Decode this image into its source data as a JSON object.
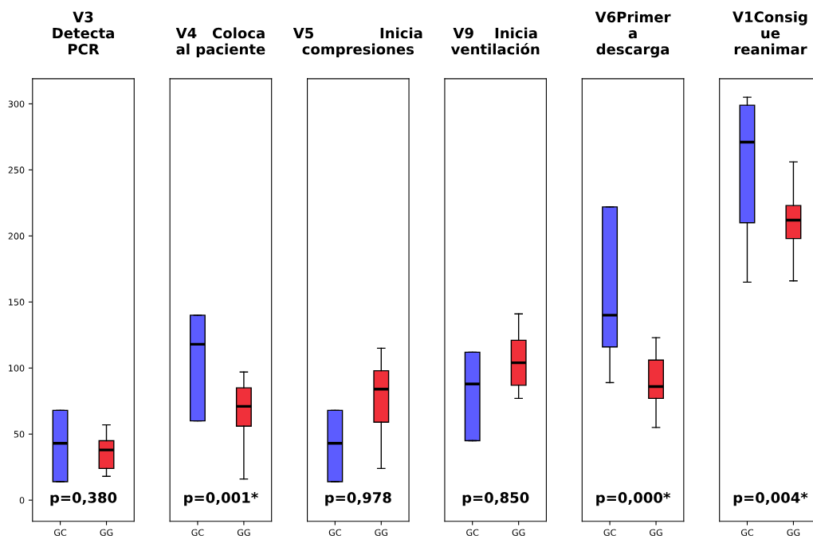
{
  "chart_data": [
    {
      "type": "box",
      "title": "V3\nDetecta\nPCR",
      "categories": [
        "GC",
        "GG"
      ],
      "colors": [
        "#5c5cff",
        "#f0303a"
      ],
      "ylim": [
        -16,
        319
      ],
      "yticks": [
        0,
        50,
        100,
        150,
        200,
        250,
        300
      ],
      "annotations": [
        "p=0,380"
      ],
      "boxes": [
        {
          "low": 14,
          "q1": 14,
          "median": 43,
          "q3": 68,
          "high": 68
        },
        {
          "low": 18,
          "q1": 24,
          "median": 38,
          "q3": 45,
          "high": 57
        }
      ]
    },
    {
      "type": "box",
      "title": "V4   Coloca\nal paciente",
      "categories": [
        "GC",
        "GG"
      ],
      "colors": [
        "#5c5cff",
        "#f0303a"
      ],
      "ylim": [
        -16,
        319
      ],
      "tick_labels": "x",
      "annotations": [
        "p=0,001*"
      ],
      "boxes": [
        {
          "low": 60,
          "q1": 60,
          "median": 118,
          "q3": 140,
          "high": 140
        },
        {
          "low": 16,
          "q1": 56,
          "median": 71,
          "q3": 85,
          "high": 97
        }
      ]
    },
    {
      "type": "box",
      "title": "V5             Inicia\ncompresiones",
      "categories": [
        "GC",
        "GG"
      ],
      "colors": [
        "#5c5cff",
        "#f0303a"
      ],
      "ylim": [
        -16,
        319
      ],
      "tick_labels": "x",
      "annotations": [
        "p=0,978"
      ],
      "boxes": [
        {
          "low": 14,
          "q1": 14,
          "median": 43,
          "q3": 68,
          "high": 68
        },
        {
          "low": 24,
          "q1": 59,
          "median": 84,
          "q3": 98,
          "high": 115
        }
      ]
    },
    {
      "type": "box",
      "title": "V9    Inicia\nventilación",
      "categories": [
        "GC",
        "GG"
      ],
      "colors": [
        "#5c5cff",
        "#f0303a"
      ],
      "ylim": [
        -16,
        319
      ],
      "tick_labels": "x",
      "annotations": [
        "p=0,850"
      ],
      "boxes": [
        {
          "low": 45,
          "q1": 45,
          "median": 88,
          "q3": 112,
          "high": 112
        },
        {
          "low": 77,
          "q1": 87,
          "median": 104,
          "q3": 121,
          "high": 141
        }
      ]
    },
    {
      "type": "box",
      "title": "V6Primer\na\ndescarga",
      "categories": [
        "GC",
        "GG"
      ],
      "colors": [
        "#5c5cff",
        "#f0303a"
      ],
      "ylim": [
        -16,
        319
      ],
      "tick_labels": "x",
      "annotations": [
        "p=0,000*"
      ],
      "boxes": [
        {
          "low": 89,
          "q1": 116,
          "median": 140,
          "q3": 222,
          "high": 222
        },
        {
          "low": 55,
          "q1": 77,
          "median": 86,
          "q3": 106,
          "high": 123
        }
      ]
    },
    {
      "type": "box",
      "title": "V1Consig\nue\nreanimar",
      "categories": [
        "GC",
        "GG"
      ],
      "colors": [
        "#5c5cff",
        "#f0303a"
      ],
      "ylim": [
        -16,
        319
      ],
      "tick_labels": "x",
      "annotations": [
        "p=0,004*"
      ],
      "boxes": [
        {
          "low": 165,
          "q1": 210,
          "median": 271,
          "q3": 299,
          "high": 305
        },
        {
          "low": 166,
          "q1": 198,
          "median": 212,
          "q3": 223,
          "high": 256
        }
      ]
    }
  ]
}
